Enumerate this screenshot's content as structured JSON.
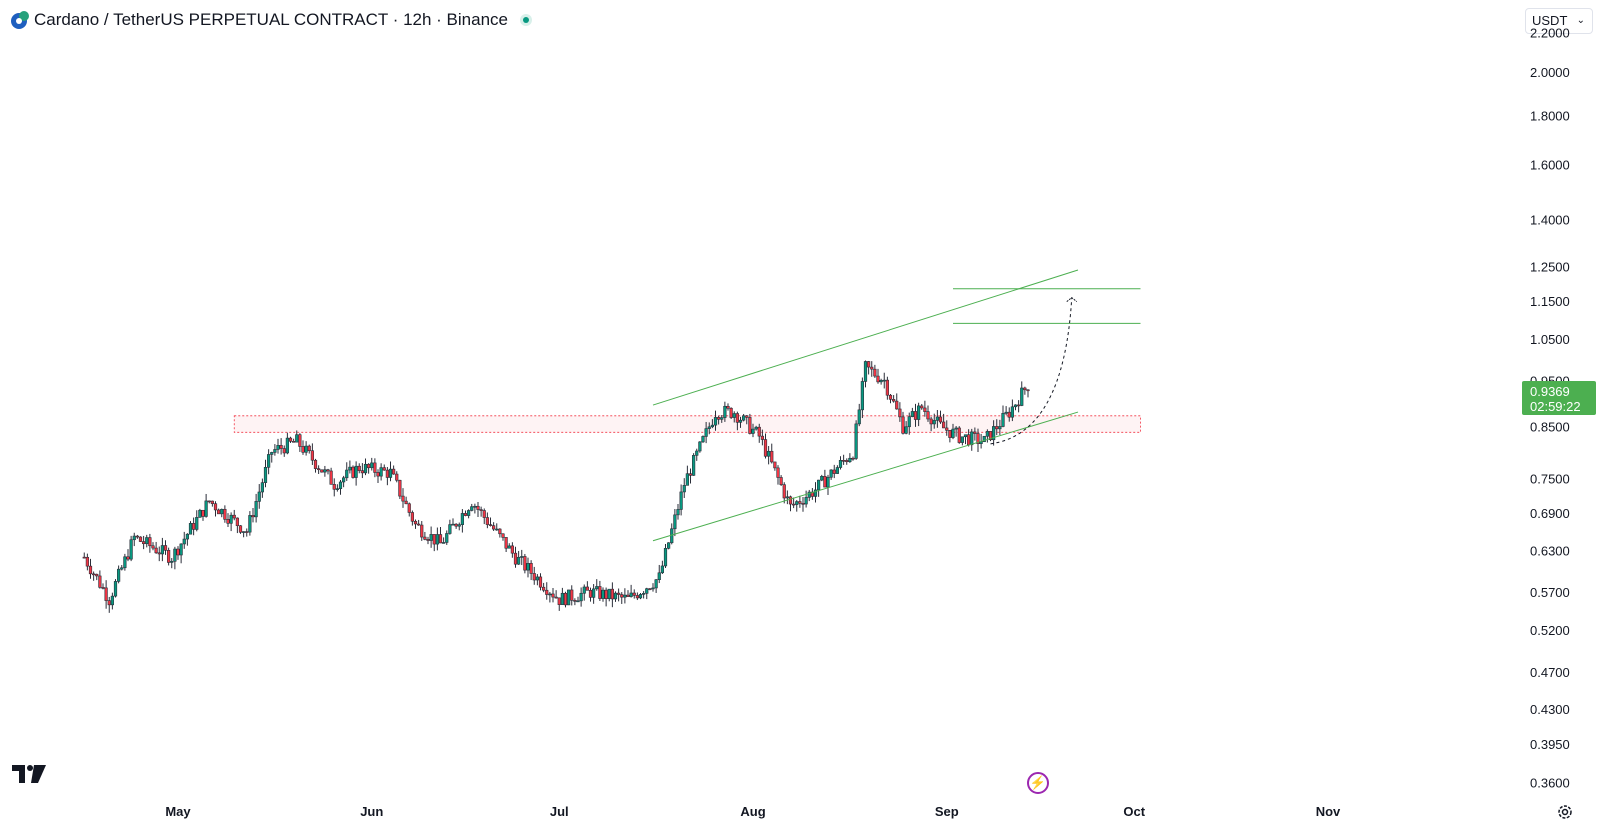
{
  "header": {
    "title": "Cardano / TetherUS PERPETUAL CONTRACT · 12h · Binance",
    "currency": "USDT"
  },
  "colors": {
    "up": "#089981",
    "down": "#f23645",
    "candle_body": "#2a2e39",
    "channel": "#4caf50",
    "zone": "#f23645",
    "price_badge": "#4caf50"
  },
  "price_badge": {
    "price": "0.9369",
    "countdown": "02:59:22"
  },
  "chart_data": {
    "type": "candlestick",
    "scale": "log",
    "y_ticks": [
      "2.2000",
      "2.0000",
      "1.8000",
      "1.6000",
      "1.4000",
      "1.2500",
      "1.1500",
      "1.0500",
      "0.9500",
      "0.8500",
      "0.7500",
      "0.6900",
      "0.6300",
      "0.5700",
      "0.5200",
      "0.4700",
      "0.4300",
      "0.3950",
      "0.3600"
    ],
    "x_ticks": [
      "May",
      "Jun",
      "Jul",
      "Aug",
      "Sep",
      "Oct",
      "Nov"
    ],
    "ylim": [
      0.345,
      2.3
    ],
    "anchors": [
      {
        "date": "2024-04-16",
        "price": 0.62
      },
      {
        "date": "2024-04-20",
        "price": 0.56
      },
      {
        "date": "2024-04-24",
        "price": 0.65
      },
      {
        "date": "2024-04-30",
        "price": 0.62
      },
      {
        "date": "2024-05-06",
        "price": 0.71
      },
      {
        "date": "2024-05-12",
        "price": 0.66
      },
      {
        "date": "2024-05-16",
        "price": 0.8
      },
      {
        "date": "2024-05-20",
        "price": 0.82
      },
      {
        "date": "2024-05-26",
        "price": 0.74
      },
      {
        "date": "2024-05-30",
        "price": 0.77
      },
      {
        "date": "2024-06-04",
        "price": 0.76
      },
      {
        "date": "2024-06-08",
        "price": 0.67
      },
      {
        "date": "2024-06-12",
        "price": 0.64
      },
      {
        "date": "2024-06-17",
        "price": 0.71
      },
      {
        "date": "2024-06-24",
        "price": 0.62
      },
      {
        "date": "2024-07-01",
        "price": 0.56
      },
      {
        "date": "2024-07-06",
        "price": 0.57
      },
      {
        "date": "2024-07-12",
        "price": 0.56
      },
      {
        "date": "2024-07-17",
        "price": 0.59
      },
      {
        "date": "2024-07-21",
        "price": 0.74
      },
      {
        "date": "2024-07-26",
        "price": 0.88
      },
      {
        "date": "2024-07-29",
        "price": 0.88
      },
      {
        "date": "2024-08-02",
        "price": 0.83
      },
      {
        "date": "2024-08-07",
        "price": 0.7
      },
      {
        "date": "2024-08-11",
        "price": 0.73
      },
      {
        "date": "2024-08-17",
        "price": 0.8
      },
      {
        "date": "2024-08-19",
        "price": 0.98
      },
      {
        "date": "2024-08-22",
        "price": 0.95
      },
      {
        "date": "2024-08-25",
        "price": 0.85
      },
      {
        "date": "2024-08-28",
        "price": 0.89
      },
      {
        "date": "2024-08-31",
        "price": 0.85
      },
      {
        "date": "2024-09-03",
        "price": 0.83
      },
      {
        "date": "2024-09-07",
        "price": 0.82
      },
      {
        "date": "2024-09-11",
        "price": 0.88
      },
      {
        "date": "2024-09-14",
        "price": 0.94
      }
    ],
    "drawings": {
      "channel_upper": [
        {
          "date": "2024-07-16",
          "price": 0.895
        },
        {
          "date": "2024-09-22",
          "price": 1.24
        }
      ],
      "channel_lower": [
        {
          "date": "2024-07-16",
          "price": 0.645
        },
        {
          "date": "2024-09-22",
          "price": 0.88
        }
      ],
      "target_line_1": {
        "from": "2024-09-02",
        "to": "2024-10-02",
        "price": 1.185
      },
      "target_line_2": {
        "from": "2024-09-02",
        "to": "2024-10-02",
        "price": 1.09
      },
      "support_zone": {
        "from": "2024-05-10",
        "to": "2024-10-02",
        "low": 0.838,
        "high": 0.872
      },
      "projection": [
        {
          "date": "2024-09-08",
          "price": 0.815
        },
        {
          "date": "2024-09-21",
          "price": 1.16
        }
      ]
    }
  }
}
